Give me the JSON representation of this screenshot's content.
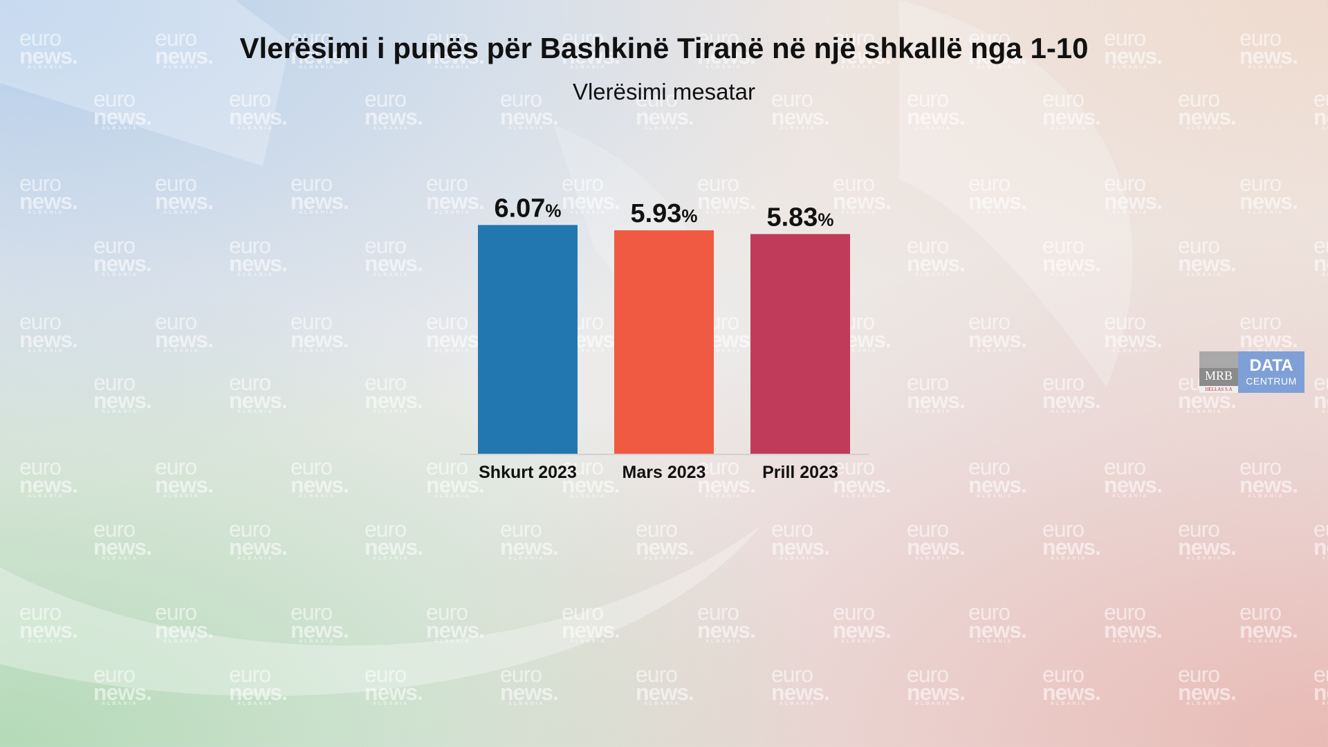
{
  "title": "Vlerësimi i punës për Bashkinë Tiranë në një shkallë nga 1-10",
  "subtitle": "Vlerësimi mesatar",
  "watermark": {
    "line1": "euro",
    "line2": "news.",
    "line3": "ALBANIA"
  },
  "logo": {
    "mrb": "MRB",
    "mrb_sub": "HELLAS S.A",
    "data": "DATA",
    "centrum": "CENTRUM"
  },
  "colors": {
    "text": "#111111",
    "baseline": "#c9c9c9"
  },
  "chart_data": {
    "type": "bar",
    "categories": [
      "Shkurt 2023",
      "Mars 2023",
      "Prill 2023"
    ],
    "values": [
      6.07,
      5.93,
      5.83
    ],
    "value_labels": [
      "6.07",
      "5.93",
      "5.83"
    ],
    "value_suffix": "%",
    "colors": [
      "#2277b0",
      "#f05a43",
      "#c03a5a"
    ],
    "ylim": [
      0,
      6.7
    ],
    "grid": false,
    "legend": "none"
  }
}
